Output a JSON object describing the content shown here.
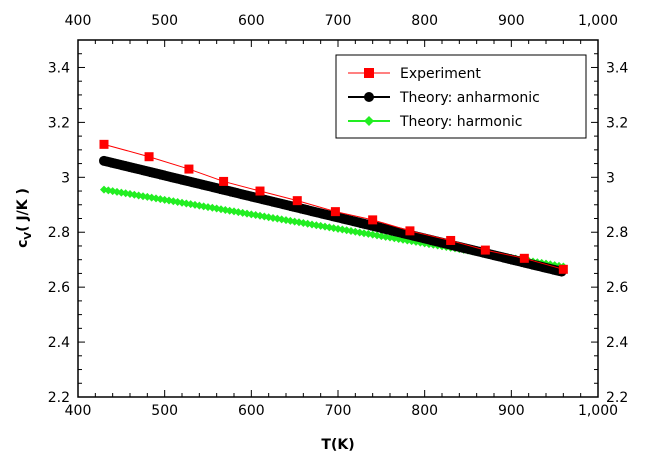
{
  "chart_data": {
    "type": "line",
    "title": "",
    "xlabel": "T(K)",
    "ylabel_main": "c",
    "ylabel_sub": "V",
    "ylabel_rest": "( J/K )",
    "xlim": [
      400,
      1000
    ],
    "ylim": [
      2.2,
      3.5
    ],
    "x_ticks": [
      400,
      500,
      600,
      700,
      800,
      900,
      1000
    ],
    "x_tick_labels": [
      "400",
      "500",
      "600",
      "700",
      "800",
      "900",
      "1,000"
    ],
    "y_ticks": [
      2.2,
      2.4,
      2.6,
      2.8,
      3.0,
      3.2,
      3.4
    ],
    "y_tick_labels": [
      "2.2",
      "2.4",
      "2.6",
      "2.8",
      "3",
      "3.2",
      "3.4"
    ],
    "mirror_axes": true,
    "grid": false,
    "legend_position": "top-right",
    "series": [
      {
        "name": "Experiment",
        "color": "#ff0000",
        "marker": "square",
        "x": [
          430,
          482,
          528,
          568,
          610,
          653,
          697,
          740,
          783,
          830,
          870,
          915,
          960
        ],
        "y": [
          3.12,
          3.075,
          3.03,
          2.985,
          2.95,
          2.915,
          2.875,
          2.845,
          2.805,
          2.77,
          2.735,
          2.705,
          2.665
        ]
      },
      {
        "name": "Theory: anharmonic",
        "color": "#000000",
        "marker": "circle",
        "x_start": 430,
        "x_end": 960,
        "x_step": 3,
        "y_start": 3.06,
        "y_end": 2.655
      },
      {
        "name": "Theory: harmonic",
        "color": "#22ee22",
        "marker": "diamond",
        "x_start": 430,
        "x_end": 960,
        "x_step": 5,
        "y_start": 2.955,
        "y_end": 2.675
      }
    ]
  }
}
